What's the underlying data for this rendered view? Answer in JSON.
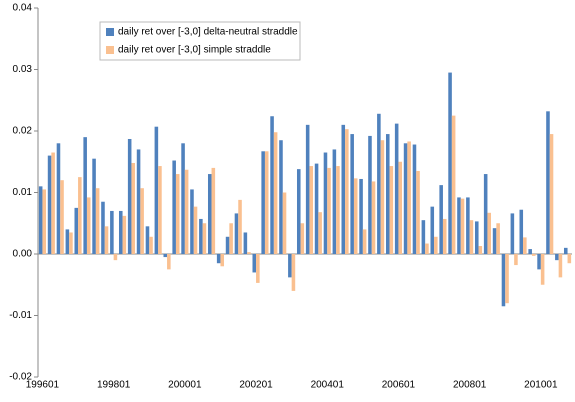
{
  "chart_data": {
    "type": "bar",
    "categories": [
      "199601",
      null,
      null,
      null,
      null,
      null,
      null,
      null,
      "199801",
      null,
      null,
      null,
      null,
      null,
      null,
      null,
      "200001",
      null,
      null,
      null,
      null,
      null,
      null,
      null,
      "200201",
      null,
      null,
      null,
      null,
      null,
      null,
      null,
      "200401",
      null,
      null,
      null,
      null,
      null,
      null,
      null,
      "200601",
      null,
      null,
      null,
      null,
      null,
      null,
      null,
      "200801",
      null,
      null,
      null,
      null,
      null,
      null,
      null,
      "201001",
      null,
      null,
      null
    ],
    "series": [
      {
        "name": "daily ret over [-3,0] delta-neutral straddle",
        "color": "#4f81bd",
        "values": [
          0.011,
          0.016,
          0.018,
          0.004,
          0.0075,
          0.019,
          0.0155,
          0.0085,
          0.007,
          0.007,
          0.0187,
          0.017,
          0.0045,
          0.0207,
          -0.0005,
          0.0152,
          0.018,
          0.0105,
          0.0057,
          0.013,
          -0.0015,
          0.0028,
          0.0066,
          0.0035,
          -0.003,
          0.0167,
          0.0224,
          0.0185,
          -0.0038,
          0.0138,
          0.021,
          0.0147,
          0.0165,
          0.017,
          0.021,
          0.0195,
          0.0122,
          0.0192,
          0.0228,
          0.0195,
          0.0212,
          0.018,
          0.0178,
          0.0055,
          0.0077,
          0.0112,
          0.0295,
          0.0092,
          0.0092,
          0.0053,
          0.013,
          0.0042,
          -0.0085,
          0.0066,
          0.0072,
          0.0008,
          -0.0025,
          0.0232,
          -0.001,
          0.001
        ]
      },
      {
        "name": "daily ret over [-3,0] simple straddle",
        "color": "#fac090",
        "values": [
          0.0105,
          0.0165,
          0.012,
          0.0035,
          0.0125,
          0.0092,
          0.0107,
          0.0045,
          -0.001,
          0.0062,
          0.0148,
          0.0107,
          0.0028,
          0.0143,
          -0.0025,
          0.013,
          0.0137,
          0.0077,
          0.005,
          0.014,
          -0.002,
          0.005,
          0.0088,
          0.0003,
          -0.0047,
          0.0167,
          0.0198,
          0.01,
          -0.006,
          0.005,
          0.0143,
          0.0068,
          0.014,
          0.0143,
          0.0203,
          0.0123,
          0.004,
          0.0118,
          0.0185,
          0.0143,
          0.015,
          0.0183,
          0.0135,
          0.0017,
          0.0028,
          0.0057,
          0.0225,
          0.009,
          0.0055,
          0.0013,
          0.0067,
          0.005,
          -0.008,
          -0.0018,
          0.0027,
          -0.0003,
          -0.005,
          0.0195,
          -0.0038,
          -0.0015
        ]
      }
    ],
    "ylim": [
      -0.02,
      0.04
    ],
    "yticks": [
      -0.02,
      -0.01,
      {
        "value": 0,
        "label": "0.00"
      },
      0.01,
      0.02,
      0.03,
      0.04
    ],
    "legend": "top-left"
  }
}
